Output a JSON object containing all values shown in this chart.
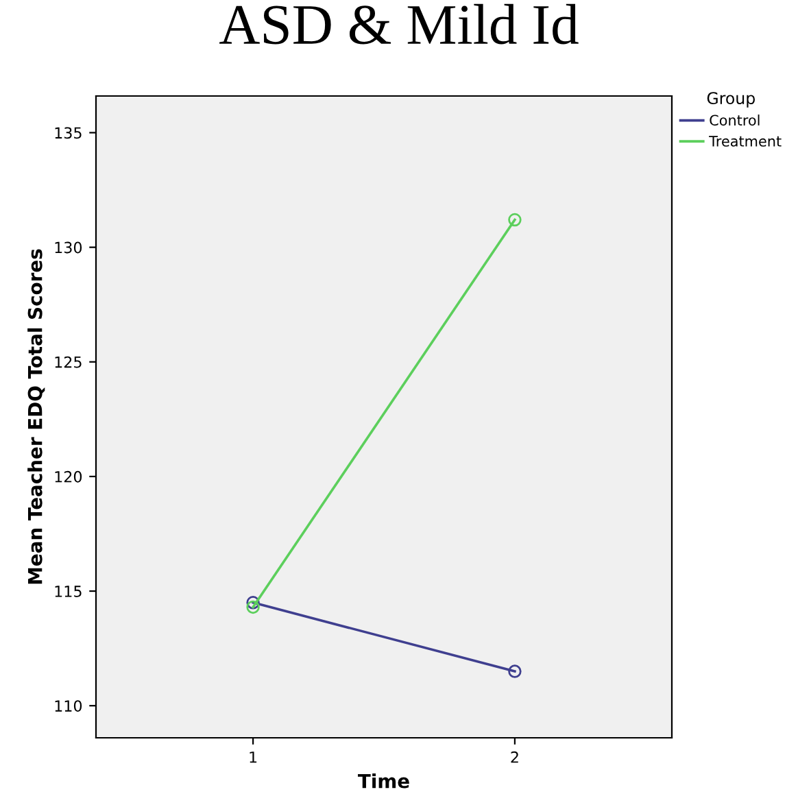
{
  "chart_data": {
    "type": "line",
    "title": "ASD & Mild Id",
    "xlabel": "Time",
    "ylabel": "Mean Teacher EDQ Total Scores",
    "legend_title": "Group",
    "x": [
      1,
      2
    ],
    "series": [
      {
        "name": "Control",
        "color": "#3f3f8f",
        "values": [
          114.5,
          111.5
        ]
      },
      {
        "name": "Treatment",
        "color": "#5ccf5c",
        "values": [
          114.3,
          131.2
        ]
      }
    ],
    "xlim": [
      0.4,
      2.6
    ],
    "xticks": [
      1,
      2
    ],
    "ylim": [
      108.6,
      136.6
    ],
    "yticks": [
      110,
      115,
      120,
      125,
      130,
      135
    ],
    "grid": false,
    "legend": "top right",
    "marker": "circle",
    "line_style": "solid"
  }
}
